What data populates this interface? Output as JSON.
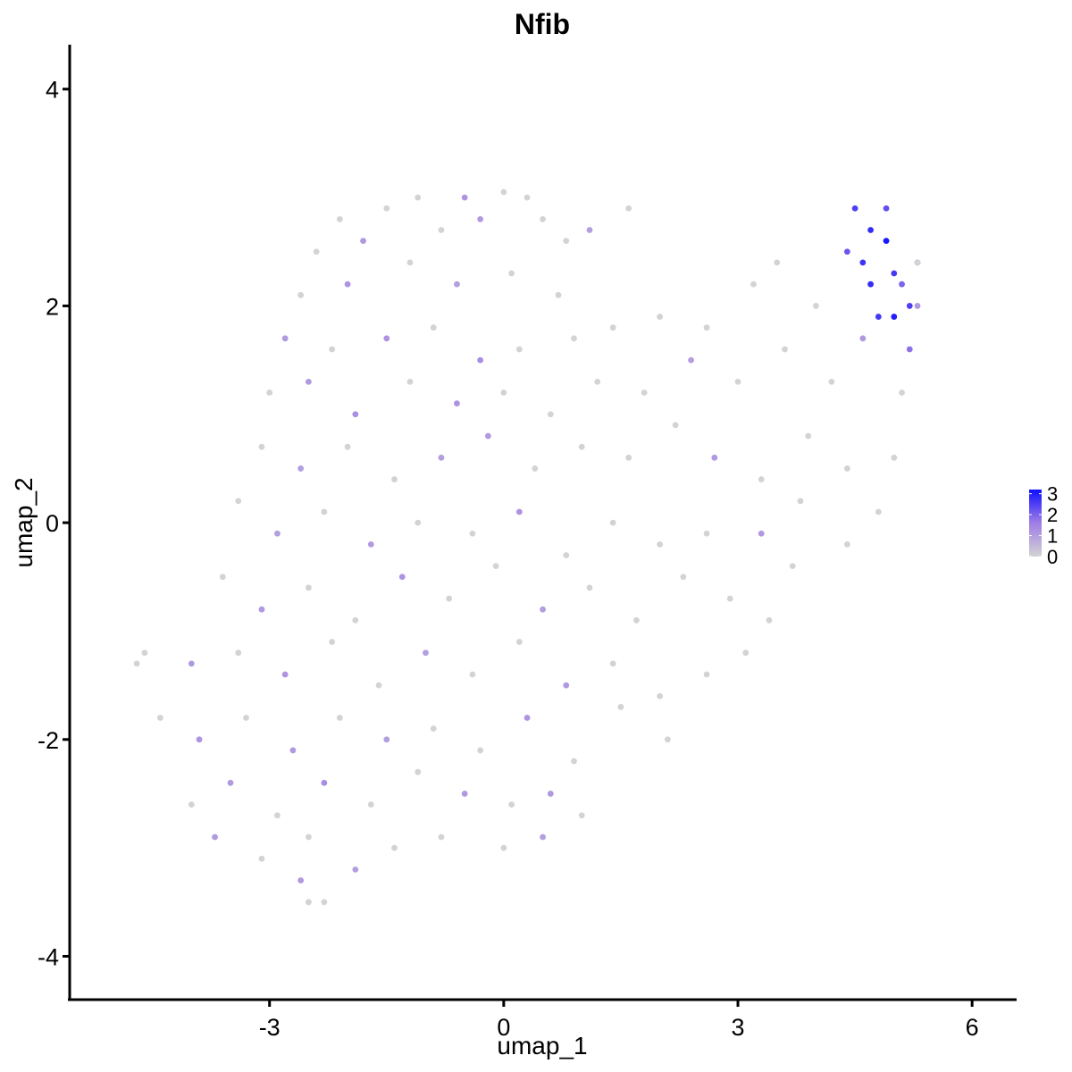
{
  "chart_data": {
    "type": "scatter",
    "title": "Nfib",
    "x_label": "umap_1",
    "y_label": "umap_2",
    "xlim": [
      -5.56,
      6.57
    ],
    "ylim": [
      -4.4,
      4.41
    ],
    "xticks": [
      -3,
      0,
      3,
      6
    ],
    "yticks": [
      -4,
      -2,
      0,
      2,
      4
    ],
    "clim": [
      0,
      3.2
    ],
    "cticks": [
      0,
      1,
      2,
      3
    ],
    "colors": [
      "#d3d3d3",
      "#a07ee6",
      "#1010ff"
    ],
    "x": [
      -2.1,
      -1.5,
      -1.1,
      -0.5,
      0.0,
      0.3,
      0.5,
      -0.3,
      -0.8,
      1.1,
      1.6,
      -2.4,
      -1.8,
      0.8,
      -2.6,
      -2.0,
      -1.2,
      -0.6,
      0.1,
      0.7,
      -2.8,
      -2.2,
      -1.5,
      -0.9,
      -0.3,
      0.2,
      0.9,
      1.4,
      2.0,
      2.6,
      3.2,
      3.5,
      4.0,
      -3.0,
      -2.5,
      -1.9,
      -1.2,
      -0.6,
      0.0,
      0.6,
      1.2,
      1.8,
      2.4,
      3.0,
      3.6,
      4.2,
      4.6,
      5.1,
      -3.1,
      -2.6,
      -2.0,
      -1.4,
      -0.8,
      -0.2,
      0.4,
      1.0,
      1.6,
      2.2,
      2.7,
      3.3,
      3.9,
      4.4,
      5.0,
      -3.4,
      -2.9,
      -2.3,
      -1.7,
      -1.1,
      -0.4,
      0.2,
      0.8,
      1.4,
      2.0,
      2.6,
      3.3,
      3.8,
      4.4,
      4.8,
      -3.6,
      -3.1,
      -2.5,
      -1.9,
      -1.3,
      -0.7,
      -0.1,
      0.5,
      1.1,
      1.7,
      2.3,
      2.9,
      3.4,
      3.7,
      -4.6,
      -4.7,
      -4.0,
      -3.4,
      -2.8,
      -2.2,
      -1.6,
      -1.0,
      -0.4,
      0.2,
      0.8,
      1.4,
      2.0,
      2.6,
      3.1,
      -4.4,
      -3.9,
      -3.3,
      -2.7,
      -2.1,
      -1.5,
      -0.9,
      -0.3,
      0.3,
      0.9,
      1.5,
      2.1,
      -4.0,
      -3.5,
      -2.9,
      -2.3,
      -1.7,
      -1.1,
      -0.5,
      0.1,
      0.6,
      1.0,
      -3.7,
      -3.1,
      -2.5,
      -1.9,
      -1.4,
      -0.8,
      0.0,
      0.5,
      -2.3,
      -2.5,
      -2.6,
      4.5,
      4.7,
      4.9,
      5.0,
      4.6,
      5.2,
      5.0,
      4.8,
      5.3,
      4.4,
      4.7,
      5.1,
      4.9,
      5.2,
      5.3,
      5.3
    ],
    "y": [
      2.8,
      2.9,
      3.0,
      3.0,
      3.05,
      3.0,
      2.8,
      2.8,
      2.7,
      2.7,
      2.9,
      2.5,
      2.6,
      2.6,
      2.1,
      2.2,
      2.4,
      2.2,
      2.3,
      2.1,
      1.7,
      1.6,
      1.7,
      1.8,
      1.5,
      1.6,
      1.7,
      1.8,
      1.9,
      1.8,
      2.2,
      2.4,
      2.0,
      1.2,
      1.3,
      1.0,
      1.3,
      1.1,
      1.2,
      1.0,
      1.3,
      1.2,
      1.5,
      1.3,
      1.6,
      1.3,
      1.7,
      1.2,
      0.7,
      0.5,
      0.7,
      0.4,
      0.6,
      0.8,
      0.5,
      0.7,
      0.6,
      0.9,
      0.6,
      0.4,
      0.8,
      0.5,
      0.6,
      0.2,
      -0.1,
      0.1,
      -0.2,
      0.0,
      -0.1,
      0.1,
      -0.3,
      0.0,
      -0.2,
      -0.1,
      -0.1,
      0.2,
      -0.2,
      0.1,
      -0.5,
      -0.8,
      -0.6,
      -0.9,
      -0.5,
      -0.7,
      -0.4,
      -0.8,
      -0.6,
      -0.9,
      -0.5,
      -0.7,
      -0.9,
      -0.4,
      -1.2,
      -1.3,
      -1.3,
      -1.2,
      -1.4,
      -1.1,
      -1.5,
      -1.2,
      -1.4,
      -1.1,
      -1.5,
      -1.3,
      -1.6,
      -1.4,
      -1.2,
      -1.8,
      -2.0,
      -1.8,
      -2.1,
      -1.8,
      -2.0,
      -1.9,
      -2.1,
      -1.8,
      -2.2,
      -1.7,
      -2.0,
      -2.6,
      -2.4,
      -2.7,
      -2.4,
      -2.6,
      -2.3,
      -2.5,
      -2.6,
      -2.5,
      -2.7,
      -2.9,
      -3.1,
      -2.9,
      -3.2,
      -3.0,
      -2.9,
      -3.0,
      -2.9,
      -3.5,
      -3.5,
      -3.3,
      2.9,
      2.7,
      2.6,
      2.3,
      2.4,
      2.0,
      1.9,
      1.9,
      2.4,
      2.5,
      2.2,
      2.2,
      2.9,
      1.6,
      2.4,
      2.0
    ],
    "values": [
      0,
      0,
      0,
      1.2,
      0,
      0,
      0,
      1.1,
      0,
      1.0,
      0,
      0,
      1.1,
      0,
      0,
      1.2,
      0,
      1.0,
      0,
      0,
      1.1,
      0,
      1.2,
      0,
      1.3,
      0,
      0,
      0,
      0,
      0,
      0,
      0,
      0,
      0,
      1.1,
      1.3,
      0,
      1.2,
      0,
      0,
      0,
      0,
      1.0,
      0,
      0,
      0,
      1.1,
      0,
      0,
      1.0,
      0,
      0,
      1.0,
      1.1,
      0,
      0,
      0,
      0,
      1.1,
      0,
      0,
      0,
      0,
      0,
      1.0,
      0,
      1.1,
      0,
      0,
      1.2,
      0,
      0,
      0,
      0,
      1.1,
      0,
      0,
      0,
      0,
      1.1,
      0,
      0,
      1.2,
      0,
      0,
      1.0,
      0,
      0,
      0,
      0,
      0,
      0,
      0,
      0,
      1.1,
      0,
      1.2,
      0,
      0,
      1.0,
      0,
      0,
      1.1,
      0,
      0,
      0,
      0,
      0,
      1.2,
      0,
      1.1,
      0,
      1.0,
      0,
      0,
      1.2,
      0,
      0,
      0,
      0,
      1.1,
      0,
      1.3,
      0,
      0,
      1.1,
      0,
      1.1,
      0,
      1.1,
      0,
      0,
      1.0,
      0,
      0,
      0,
      1.0,
      0,
      0,
      1.1,
      2.5,
      2.8,
      3.1,
      2.6,
      2.7,
      2.5,
      3.0,
      2.6,
      2.2,
      2.2,
      2.8,
      2.0,
      2.3,
      1.8,
      0,
      1.1
    ]
  }
}
